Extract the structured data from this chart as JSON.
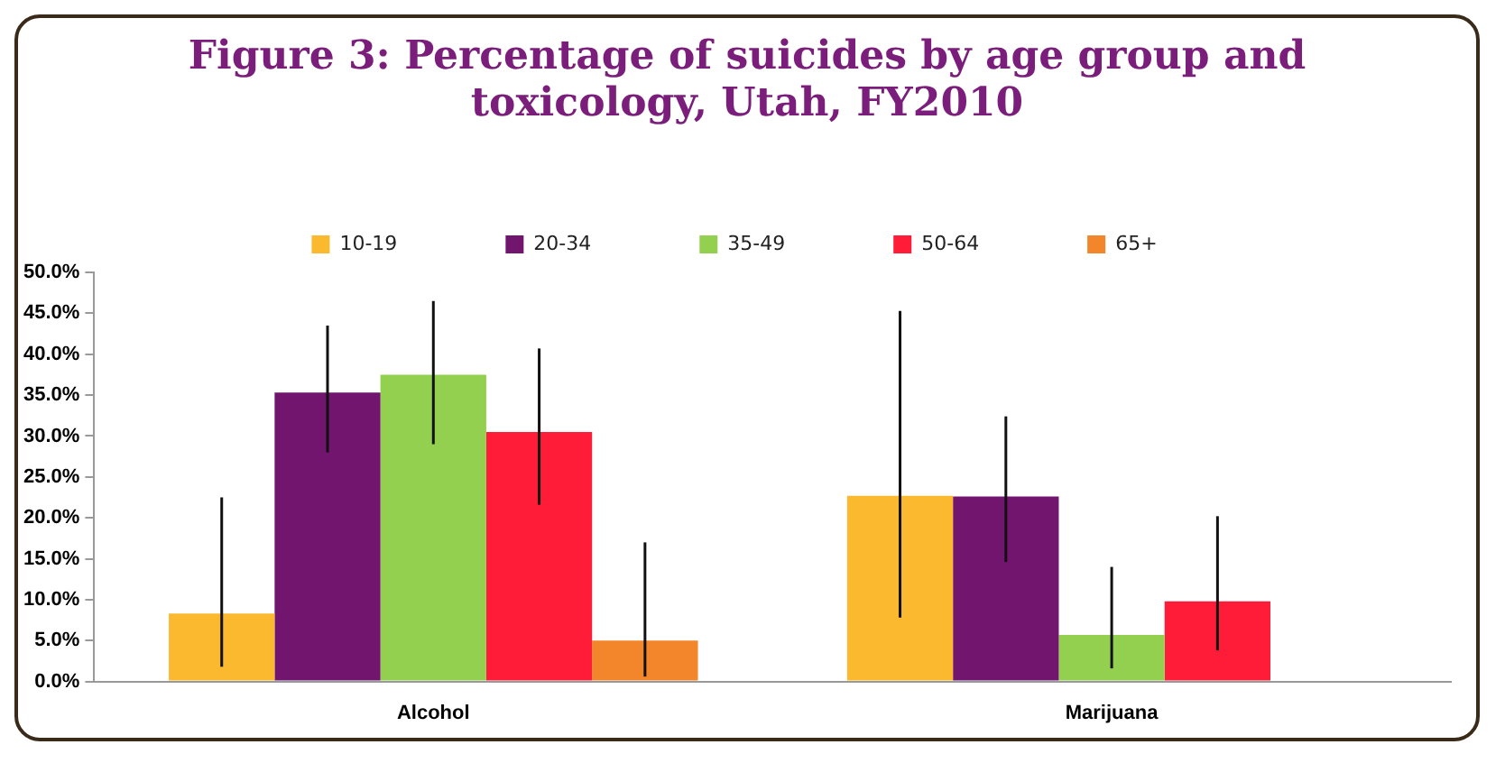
{
  "chart_data": {
    "type": "bar",
    "title": "Figure 3: Percentage of suicides by age group and toxicology, Utah, FY2010",
    "categories": [
      "Alcohol",
      "Marijuana"
    ],
    "series": [
      {
        "name": "10-19",
        "color": "#fbb92f",
        "values": [
          8.3,
          22.7
        ],
        "errors": [
          [
            1.8,
            22.5
          ],
          [
            7.8,
            45.3
          ]
        ]
      },
      {
        "name": "20-34",
        "color": "#71156e",
        "values": [
          35.3,
          22.6
        ],
        "errors": [
          [
            28,
            43.5
          ],
          [
            14.6,
            32.4
          ]
        ]
      },
      {
        "name": "35-49",
        "color": "#94d04f",
        "values": [
          37.5,
          5.7
        ],
        "errors": [
          [
            29,
            46.5
          ],
          [
            1.6,
            14
          ]
        ]
      },
      {
        "name": "50-64",
        "color": "#fe1c38",
        "values": [
          30.5,
          9.8
        ],
        "errors": [
          [
            21.6,
            40.7
          ],
          [
            3.8,
            20.2
          ]
        ]
      },
      {
        "name": "65+",
        "color": "#f3852a",
        "values": [
          5.0,
          null
        ],
        "errors": [
          [
            0.6,
            17
          ],
          null
        ]
      }
    ],
    "ylim": [
      0,
      50
    ],
    "yticks": [
      {
        "value": 0,
        "label": "0.0%"
      },
      {
        "value": 5,
        "label": "5.0%"
      },
      {
        "value": 10,
        "label": "10.0%"
      },
      {
        "value": 15,
        "label": "15.0%"
      },
      {
        "value": 20,
        "label": "20.0%"
      },
      {
        "value": 25,
        "label": "25.0%"
      },
      {
        "value": 30,
        "label": "30.0%"
      },
      {
        "value": 35,
        "label": "35.0%"
      },
      {
        "value": 40,
        "label": "40.0%"
      },
      {
        "value": 45,
        "label": "45.0%"
      },
      {
        "value": 50,
        "label": "50.0%"
      }
    ],
    "grid": false,
    "legend": "top"
  }
}
